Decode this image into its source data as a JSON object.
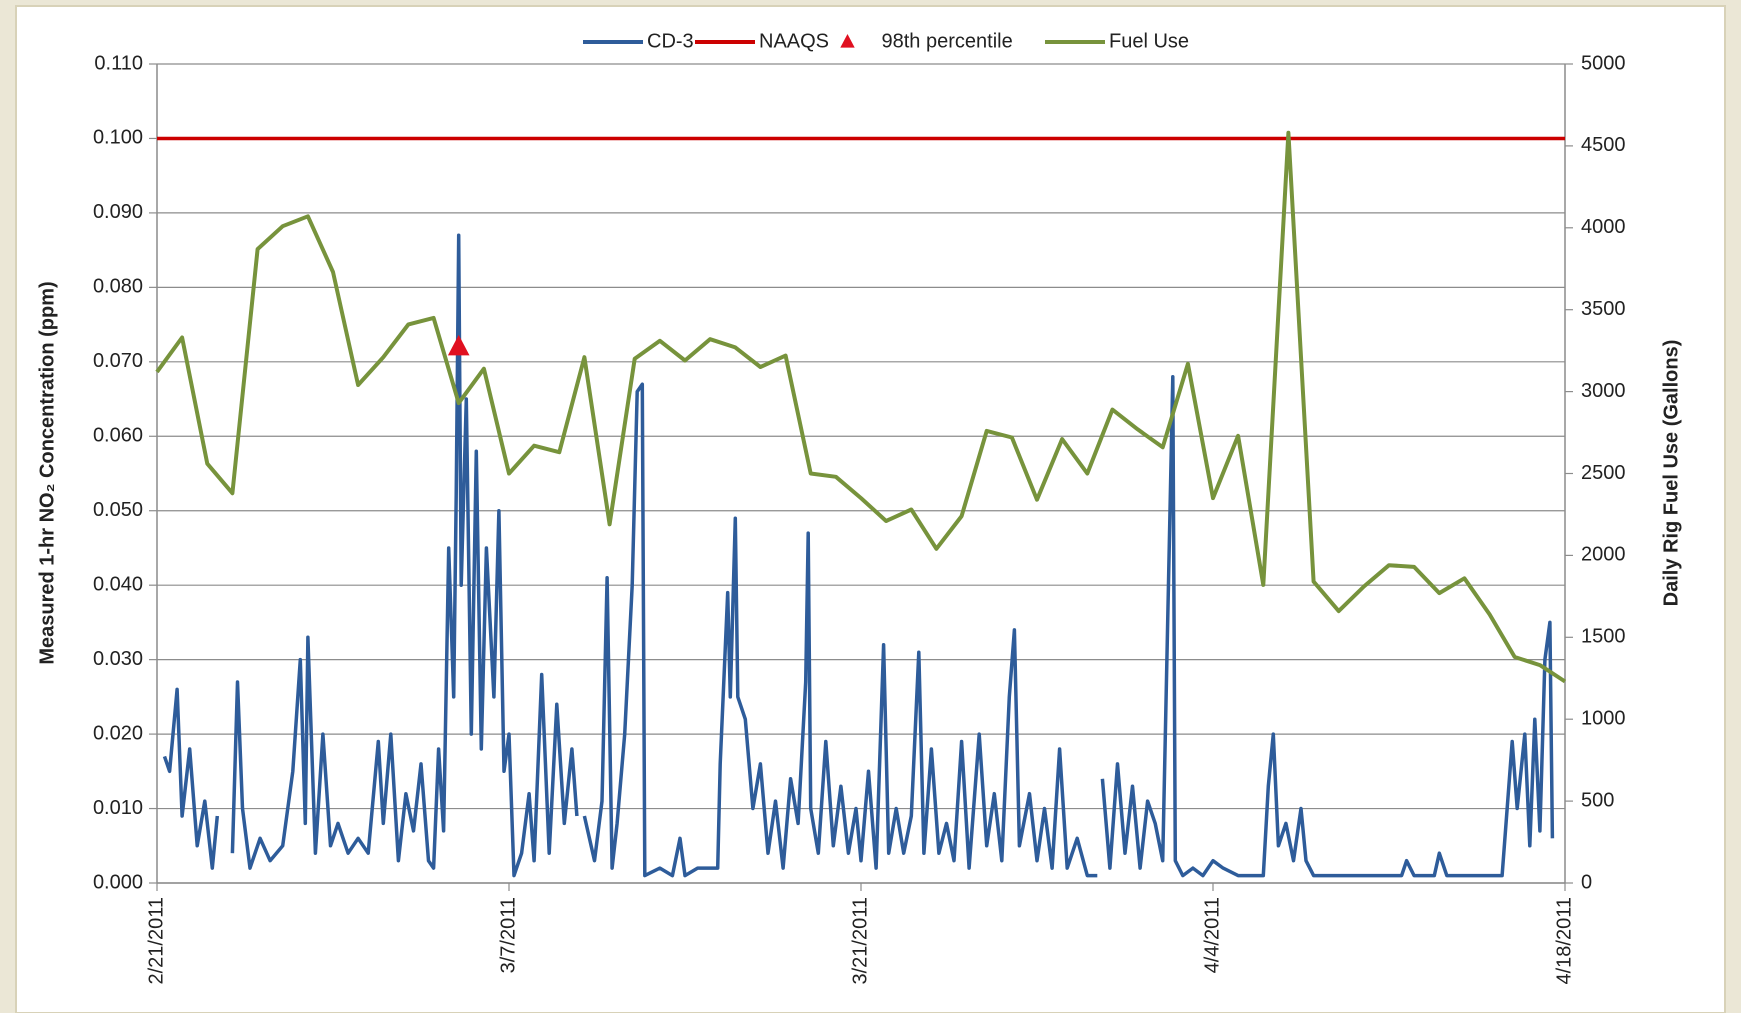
{
  "chart_data": {
    "type": "line",
    "ylabel": "Measured 1-hr NO₂ Concentration (ppm)",
    "y2label": "Daily Rig Fuel Use (Gallons)",
    "xlim": [
      0,
      56
    ],
    "xticks": [
      {
        "value": 0,
        "label": "2/21/2011"
      },
      {
        "value": 14,
        "label": "3/7/2011"
      },
      {
        "value": 28,
        "label": "3/21/2011"
      },
      {
        "value": 42,
        "label": "4/4/2011"
      },
      {
        "value": 56,
        "label": "4/18/2011"
      }
    ],
    "ylim": [
      0,
      0.11
    ],
    "yticks": [
      {
        "value": 0,
        "label": "0.000"
      },
      {
        "value": 0.01,
        "label": "0.010"
      },
      {
        "value": 0.02,
        "label": "0.020"
      },
      {
        "value": 0.03,
        "label": "0.030"
      },
      {
        "value": 0.04,
        "label": "0.040"
      },
      {
        "value": 0.05,
        "label": "0.050"
      },
      {
        "value": 0.06,
        "label": "0.060"
      },
      {
        "value": 0.07,
        "label": "0.070"
      },
      {
        "value": 0.08,
        "label": "0.080"
      },
      {
        "value": 0.09,
        "label": "0.090"
      },
      {
        "value": 0.1,
        "label": "0.100"
      },
      {
        "value": 0.11,
        "label": "0.110"
      }
    ],
    "y2lim": [
      0,
      5000
    ],
    "y2ticks": [
      0,
      500,
      1000,
      1500,
      2000,
      2500,
      3000,
      3500,
      4000,
      4500,
      5000
    ],
    "grid": true,
    "legend": "top",
    "series": [
      {
        "name": "CD-3",
        "color": "#2e5c9a",
        "style": "line",
        "x": [
          0.3,
          0.5,
          0.8,
          1.0,
          1.3,
          1.6,
          1.9,
          2.2,
          2.4,
          2.7,
          3.0,
          3.2,
          3.4,
          3.7,
          4.1,
          4.5,
          5.0,
          5.4,
          5.7,
          5.9,
          6.0,
          6.3,
          6.6,
          6.9,
          7.2,
          7.6,
          8.0,
          8.4,
          8.8,
          9.0,
          9.3,
          9.6,
          9.9,
          10.2,
          10.5,
          10.8,
          11.0,
          11.2,
          11.4,
          11.6,
          11.8,
          11.9,
          12.0,
          12.1,
          12.3,
          12.5,
          12.7,
          12.9,
          13.1,
          13.4,
          13.6,
          13.8,
          14.0,
          14.2,
          14.5,
          14.8,
          15.0,
          15.3,
          15.6,
          15.9,
          16.2,
          16.5,
          16.7,
          16.85,
          17.0,
          17.4,
          17.7,
          17.9,
          18.1,
          18.3,
          18.6,
          18.9,
          19.1,
          19.3,
          19.4,
          20.0,
          20.5,
          20.8,
          21.0,
          21.5,
          22.0,
          22.3,
          22.4,
          22.7,
          22.8,
          23.0,
          23.1,
          23.4,
          23.7,
          24.0,
          24.3,
          24.6,
          24.9,
          25.2,
          25.5,
          25.8,
          25.9,
          26.0,
          26.3,
          26.6,
          26.9,
          27.2,
          27.5,
          27.8,
          28.0,
          28.3,
          28.6,
          28.9,
          29.1,
          29.4,
          29.7,
          30.0,
          30.3,
          30.5,
          30.8,
          31.1,
          31.4,
          31.7,
          32.0,
          32.3,
          32.7,
          33.0,
          33.3,
          33.6,
          33.9,
          34.1,
          34.3,
          34.7,
          35.0,
          35.3,
          35.6,
          35.9,
          36.2,
          36.6,
          37.0,
          37.4,
          37.5,
          37.6,
          37.9,
          38.2,
          38.5,
          38.8,
          39.1,
          39.4,
          39.7,
          40.0,
          40.4,
          40.5,
          40.8,
          41.2,
          41.6,
          42.0,
          42.4,
          43.0,
          43.5,
          44.0,
          44.2,
          44.4,
          44.6,
          44.9,
          45.2,
          45.5,
          45.7,
          46.0,
          47.0,
          48.0,
          49.0,
          49.5,
          49.7,
          50.0,
          50.8,
          51.0,
          51.3,
          52.0,
          53.0,
          53.5,
          53.9,
          54.1,
          54.4,
          54.6,
          54.8,
          55.0,
          55.2,
          55.4,
          55.5
        ],
        "values": [
          0.017,
          0.015,
          0.026,
          0.009,
          0.018,
          0.005,
          0.011,
          0.002,
          0.009,
          null,
          0.004,
          0.027,
          0.01,
          0.002,
          0.006,
          0.003,
          0.005,
          0.015,
          0.03,
          0.008,
          0.033,
          0.004,
          0.02,
          0.005,
          0.008,
          0.004,
          0.006,
          0.004,
          0.019,
          0.008,
          0.02,
          0.003,
          0.012,
          0.007,
          0.016,
          0.003,
          0.002,
          0.018,
          0.007,
          0.045,
          0.025,
          0.052,
          0.087,
          0.04,
          0.065,
          0.02,
          0.058,
          0.018,
          0.045,
          0.025,
          0.05,
          0.015,
          0.02,
          0.001,
          0.004,
          0.012,
          0.003,
          0.028,
          0.004,
          0.024,
          0.008,
          0.018,
          0.009,
          null,
          0.009,
          0.003,
          0.011,
          0.041,
          0.002,
          0.008,
          0.02,
          0.04,
          0.066,
          0.067,
          0.001,
          0.002,
          0.001,
          0.006,
          0.001,
          0.002,
          0.002,
          0.002,
          0.016,
          0.039,
          0.025,
          0.049,
          0.025,
          0.022,
          0.01,
          0.016,
          0.004,
          0.011,
          0.002,
          0.014,
          0.008,
          0.027,
          0.047,
          0.01,
          0.004,
          0.019,
          0.005,
          0.013,
          0.004,
          0.01,
          0.003,
          0.015,
          0.002,
          0.032,
          0.004,
          0.01,
          0.004,
          0.009,
          0.031,
          0.004,
          0.018,
          0.004,
          0.008,
          0.003,
          0.019,
          0.002,
          0.02,
          0.005,
          0.012,
          0.003,
          0.025,
          0.034,
          0.005,
          0.012,
          0.003,
          0.01,
          0.002,
          0.018,
          0.002,
          0.006,
          0.001,
          0.001,
          null,
          0.014,
          0.002,
          0.016,
          0.004,
          0.013,
          0.002,
          0.011,
          0.008,
          0.003,
          0.068,
          0.003,
          0.001,
          0.002,
          0.001,
          0.003,
          0.002,
          0.001,
          0.001,
          0.001,
          0.013,
          0.02,
          0.005,
          0.008,
          0.003,
          0.01,
          0.003,
          0.001,
          0.001,
          0.001,
          0.001,
          0.001,
          0.003,
          0.001,
          0.001,
          0.004,
          0.001,
          0.001,
          0.001,
          0.001,
          0.019,
          0.01,
          0.02,
          0.005,
          0.022,
          0.007,
          0.03,
          0.035,
          0.006
        ]
      },
      {
        "name": "NAAQS",
        "color": "#cc0000",
        "style": "line",
        "x": [
          0,
          56
        ],
        "values": [
          0.1,
          0.1
        ]
      },
      {
        "name": "98th percentile",
        "color": "#e01020",
        "style": "marker",
        "x": [
          12.0
        ],
        "values": [
          0.072
        ]
      },
      {
        "name": "Fuel Use",
        "color": "#77933c",
        "style": "line",
        "axis": "y2",
        "x": [
          0,
          1,
          2,
          3,
          4,
          5,
          6,
          7,
          8,
          9,
          10,
          11,
          12,
          13,
          14,
          15,
          16,
          17,
          18,
          19,
          20,
          21,
          22,
          23,
          24,
          25,
          26,
          27,
          28,
          29,
          30,
          31,
          32,
          33,
          34,
          35,
          36,
          37,
          38,
          39,
          40,
          41,
          42,
          43,
          44,
          45,
          46,
          47,
          48,
          49,
          50,
          51,
          52,
          53,
          54,
          55,
          56
        ],
        "values": [
          3120,
          3330,
          2560,
          2380,
          3870,
          4010,
          4070,
          3730,
          3040,
          3210,
          3410,
          3450,
          2930,
          3140,
          2500,
          2670,
          2630,
          3210,
          2190,
          3200,
          3310,
          3190,
          3320,
          3270,
          3150,
          3220,
          2500,
          2480,
          2350,
          2210,
          2280,
          2040,
          2240,
          2760,
          2720,
          2340,
          2710,
          2500,
          2890,
          2770,
          2660,
          3170,
          2350,
          2730,
          1820,
          4580,
          1840,
          1660,
          1810,
          1940,
          1930,
          1770,
          1860,
          1640,
          1380,
          1330,
          1230
        ]
      }
    ]
  }
}
